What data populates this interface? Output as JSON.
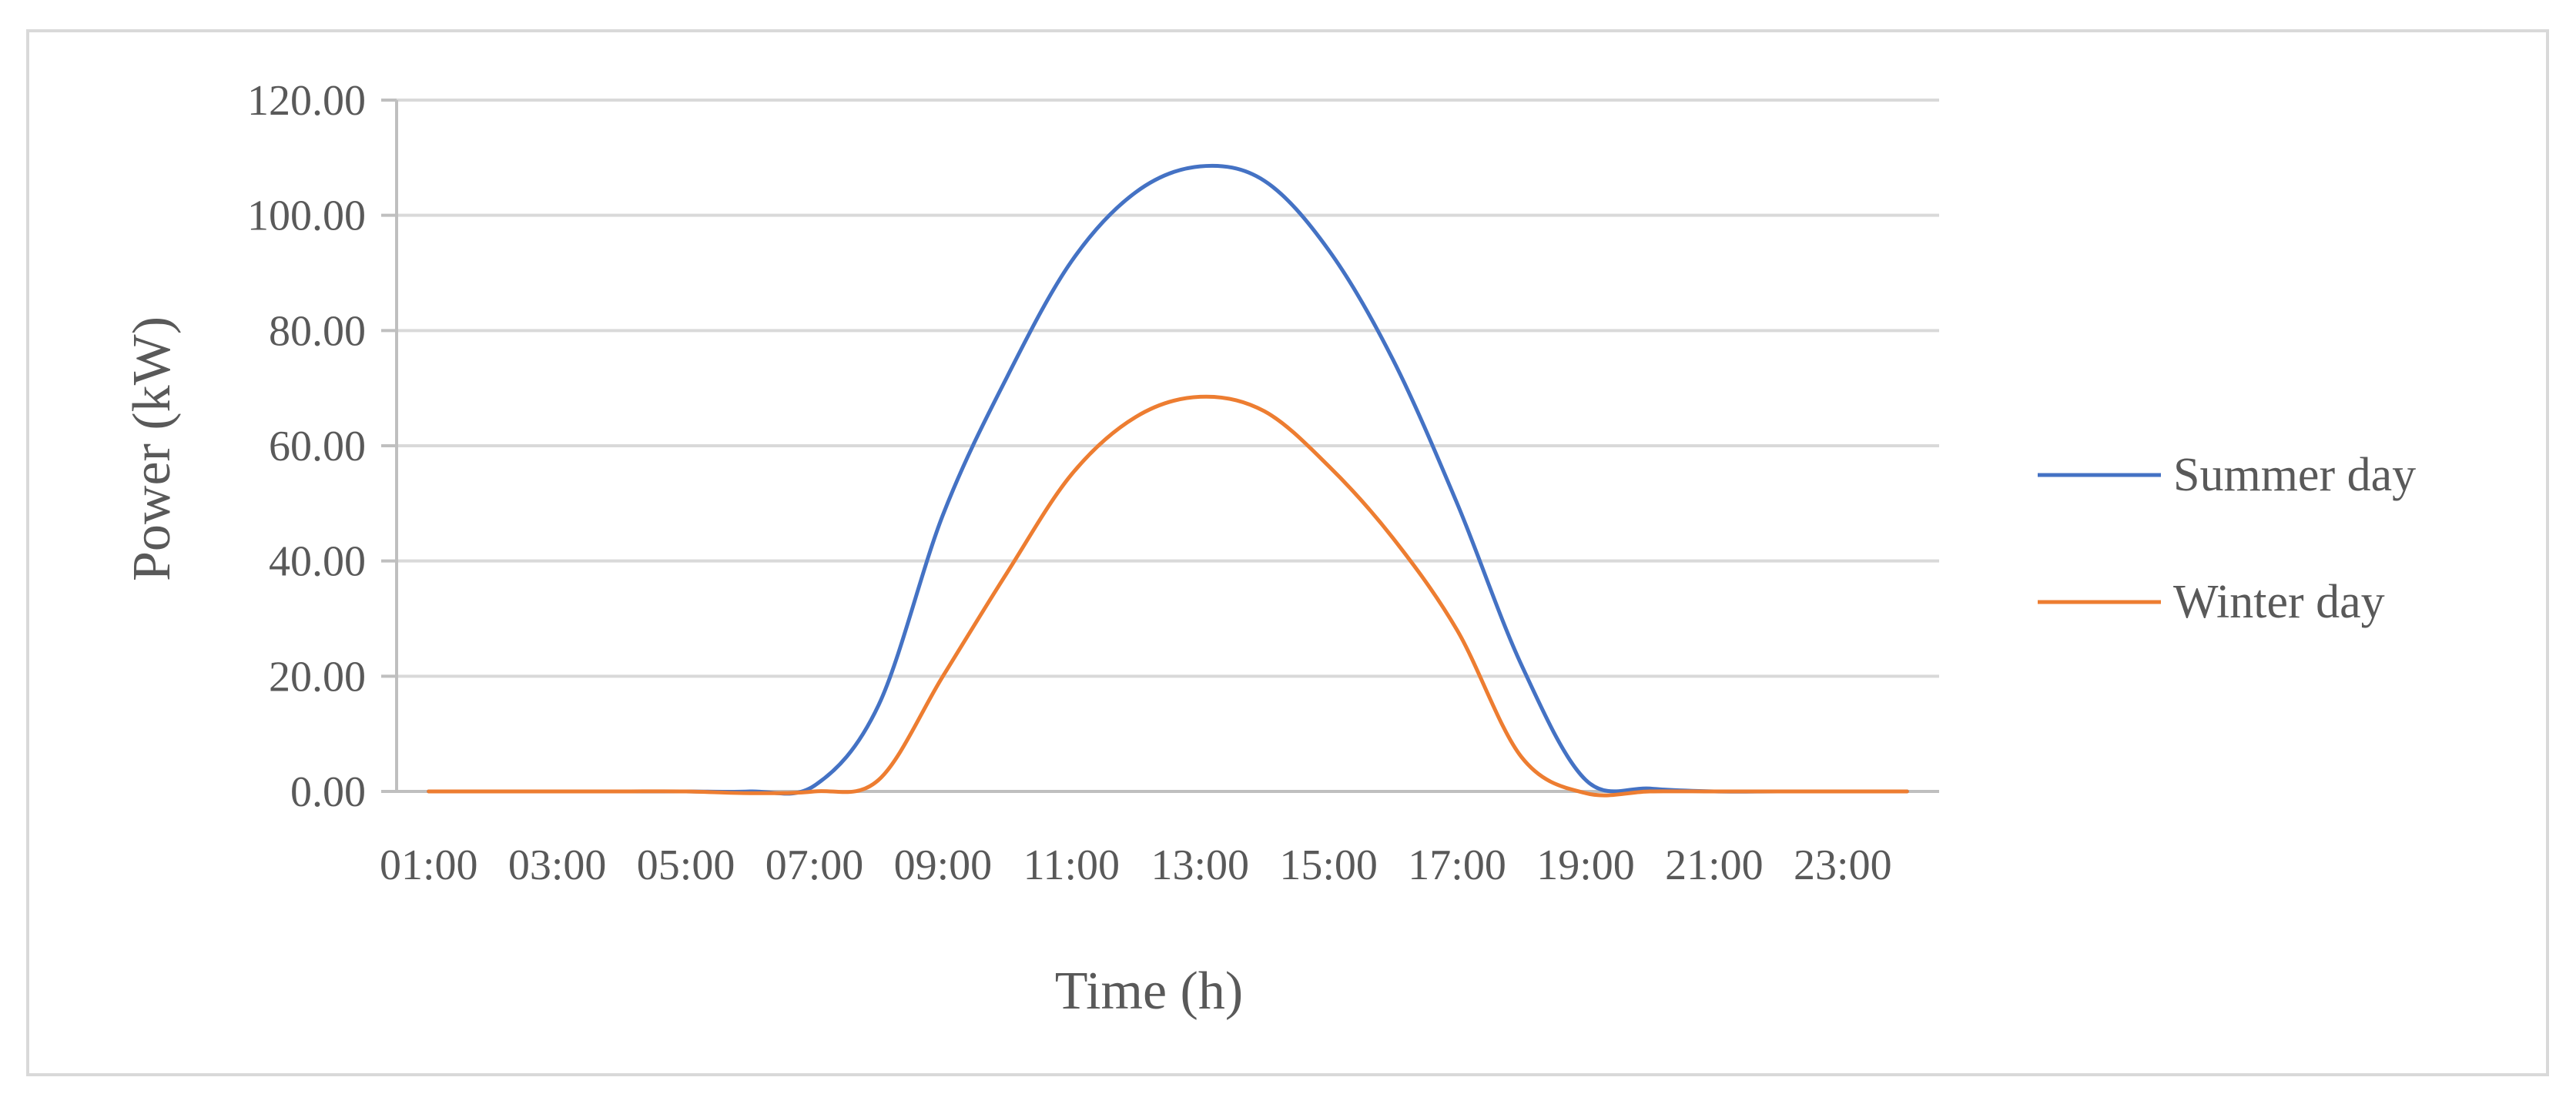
{
  "chart_data": {
    "type": "line",
    "title": "",
    "xlabel": "Time (h)",
    "ylabel": "Power (kW)",
    "x": [
      "01:00",
      "02:00",
      "03:00",
      "04:00",
      "05:00",
      "06:00",
      "07:00",
      "08:00",
      "09:00",
      "10:00",
      "11:00",
      "12:00",
      "13:00",
      "14:00",
      "15:00",
      "16:00",
      "17:00",
      "18:00",
      "19:00",
      "20:00",
      "21:00",
      "22:00",
      "23:00",
      "24:00"
    ],
    "x_tick_labels": [
      "01:00",
      "03:00",
      "05:00",
      "07:00",
      "09:00",
      "11:00",
      "13:00",
      "15:00",
      "17:00",
      "19:00",
      "21:00",
      "23:00"
    ],
    "y_tick_labels": [
      "0.00",
      "20.00",
      "40.00",
      "60.00",
      "80.00",
      "100.00",
      "120.00"
    ],
    "ylim": [
      0,
      120
    ],
    "grid": true,
    "legend_position": "right",
    "series": [
      {
        "name": "Summer day",
        "color": "#4472C4",
        "values": [
          0,
          0,
          0,
          0,
          0,
          0,
          1.0,
          15.0,
          48.0,
          72.0,
          92.0,
          104.0,
          108.5,
          106.0,
          94.0,
          75.0,
          50.0,
          22.0,
          2.0,
          0.5,
          0,
          0,
          0,
          0
        ]
      },
      {
        "name": "Winter day",
        "color": "#ED7D31",
        "values": [
          0,
          0,
          0,
          0,
          0,
          -0.3,
          0,
          2.0,
          20.0,
          38.0,
          55.0,
          65.0,
          68.5,
          66.0,
          56.5,
          44.0,
          28.0,
          6.0,
          -0.3,
          0,
          0,
          0,
          0,
          0
        ]
      }
    ]
  }
}
